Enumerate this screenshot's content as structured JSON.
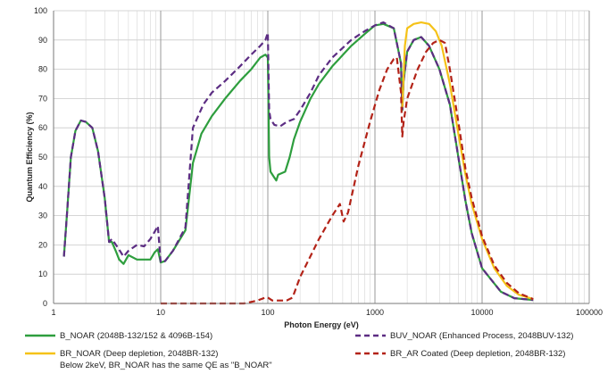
{
  "chart_data": {
    "type": "line",
    "xlabel": "Photon Energy (eV)",
    "ylabel": "Quantum Efficiency (%)",
    "xscale": "log",
    "xlim": [
      1,
      100000
    ],
    "ylim": [
      0,
      100
    ],
    "x_ticks": [
      "1",
      "10",
      "100",
      "1000",
      "10000",
      "100000"
    ],
    "y_ticks": [
      "0",
      "10",
      "20",
      "30",
      "40",
      "50",
      "60",
      "70",
      "80",
      "90",
      "100"
    ],
    "grid": true,
    "legend_position": "bottom",
    "legend_note": "Below 2keV, BR_NOAR has the same QE as \"B_NOAR\"",
    "series": [
      {
        "name": "B_NOAR       (2048B-132/152 & 4096B-154)",
        "color": "#2e9e3e",
        "dash": "solid",
        "points": [
          [
            1.25,
            16
          ],
          [
            1.33,
            30
          ],
          [
            1.45,
            50
          ],
          [
            1.6,
            59
          ],
          [
            1.8,
            62.5
          ],
          [
            2.0,
            62
          ],
          [
            2.3,
            60
          ],
          [
            2.6,
            52
          ],
          [
            3.0,
            36
          ],
          [
            3.3,
            21
          ],
          [
            3.5,
            21
          ],
          [
            3.8,
            18
          ],
          [
            4.1,
            15
          ],
          [
            4.5,
            13.5
          ],
          [
            5.0,
            16.5
          ],
          [
            6.0,
            15
          ],
          [
            7.0,
            15
          ],
          [
            8.0,
            15
          ],
          [
            8.8,
            17.5
          ],
          [
            9.4,
            18.5
          ],
          [
            10.0,
            14
          ],
          [
            11.0,
            14.5
          ],
          [
            13.0,
            18
          ],
          [
            17.0,
            25
          ],
          [
            20.0,
            48
          ],
          [
            24.0,
            58
          ],
          [
            30.0,
            64
          ],
          [
            40.0,
            70
          ],
          [
            55.0,
            76
          ],
          [
            70.0,
            80
          ],
          [
            85.0,
            84
          ],
          [
            95.0,
            85
          ],
          [
            100.0,
            84
          ],
          [
            103.0,
            50
          ],
          [
            106.0,
            45
          ],
          [
            115.0,
            43
          ],
          [
            120.0,
            42
          ],
          [
            125.0,
            44
          ],
          [
            135.0,
            44.5
          ],
          [
            145.0,
            45
          ],
          [
            160.0,
            50
          ],
          [
            175.0,
            56
          ],
          [
            200.0,
            62
          ],
          [
            250.0,
            70
          ],
          [
            300.0,
            75
          ],
          [
            400.0,
            81
          ],
          [
            600.0,
            88
          ],
          [
            800.0,
            92
          ],
          [
            1000.0,
            95
          ],
          [
            1200.0,
            95.5
          ],
          [
            1500.0,
            94
          ],
          [
            1750.0,
            82
          ],
          [
            1800.0,
            66
          ],
          [
            1850.0,
            76
          ],
          [
            2000.0,
            86
          ],
          [
            2300.0,
            90
          ],
          [
            2700.0,
            91
          ],
          [
            3200.0,
            88
          ],
          [
            4000.0,
            80
          ],
          [
            5000.0,
            68
          ],
          [
            6000.0,
            50
          ],
          [
            7000.0,
            35
          ],
          [
            8000.0,
            24
          ],
          [
            10000.0,
            12
          ],
          [
            15000.0,
            4
          ],
          [
            20000.0,
            1.8
          ],
          [
            30000.0,
            1.2
          ]
        ]
      },
      {
        "name": "BUV_NOAR       (Enhanced Process, 2048BUV-132)",
        "color": "#5c2d83",
        "dash": "dash",
        "points": [
          [
            1.25,
            16
          ],
          [
            1.33,
            30
          ],
          [
            1.45,
            50
          ],
          [
            1.6,
            59
          ],
          [
            1.8,
            62.5
          ],
          [
            2.0,
            62
          ],
          [
            2.3,
            60
          ],
          [
            2.6,
            52
          ],
          [
            3.0,
            36
          ],
          [
            3.3,
            21
          ],
          [
            3.5,
            22
          ],
          [
            4.0,
            19
          ],
          [
            4.5,
            16
          ],
          [
            5.0,
            18
          ],
          [
            6.0,
            20
          ],
          [
            7.0,
            19.5
          ],
          [
            8.0,
            22
          ],
          [
            8.8,
            24.5
          ],
          [
            9.4,
            26.5
          ],
          [
            10.0,
            14
          ],
          [
            11.0,
            14.5
          ],
          [
            13.0,
            18
          ],
          [
            17.0,
            26
          ],
          [
            20.0,
            60
          ],
          [
            25.0,
            68
          ],
          [
            30.0,
            72
          ],
          [
            40.0,
            76
          ],
          [
            55.0,
            81
          ],
          [
            70.0,
            85
          ],
          [
            85.0,
            88
          ],
          [
            95.0,
            90
          ],
          [
            100.0,
            92.5
          ],
          [
            103.0,
            66
          ],
          [
            106.0,
            63
          ],
          [
            115.0,
            61
          ],
          [
            130.0,
            60.5
          ],
          [
            150.0,
            62
          ],
          [
            175.0,
            63
          ],
          [
            200.0,
            66
          ],
          [
            250.0,
            72
          ],
          [
            300.0,
            78
          ],
          [
            400.0,
            84
          ],
          [
            600.0,
            90
          ],
          [
            800.0,
            93
          ],
          [
            1000.0,
            95
          ],
          [
            1200.0,
            96
          ],
          [
            1500.0,
            94
          ],
          [
            1750.0,
            82
          ],
          [
            1800.0,
            66
          ],
          [
            1850.0,
            76
          ],
          [
            2000.0,
            86
          ],
          [
            2300.0,
            90
          ],
          [
            2700.0,
            91
          ],
          [
            3200.0,
            88
          ],
          [
            4000.0,
            80
          ],
          [
            5000.0,
            68
          ],
          [
            6000.0,
            50
          ],
          [
            7000.0,
            35
          ],
          [
            8000.0,
            24
          ],
          [
            10000.0,
            12
          ],
          [
            15000.0,
            4
          ],
          [
            20000.0,
            1.8
          ],
          [
            30000.0,
            1.2
          ]
        ]
      },
      {
        "name": "BR_NOAR    (Deep depletion, 2048BR-132)",
        "color": "#f5c218",
        "dash": "solid",
        "points": [
          [
            1800.0,
            67
          ],
          [
            1900.0,
            88
          ],
          [
            2000.0,
            94
          ],
          [
            2300.0,
            95.5
          ],
          [
            2700.0,
            96
          ],
          [
            3200.0,
            95.5
          ],
          [
            3700.0,
            93
          ],
          [
            4200.0,
            88
          ],
          [
            5000.0,
            75
          ],
          [
            6000.0,
            58
          ],
          [
            7000.0,
            44
          ],
          [
            8000.0,
            34
          ],
          [
            10000.0,
            22
          ],
          [
            13000.0,
            12
          ],
          [
            17000.0,
            6
          ],
          [
            22000.0,
            3
          ],
          [
            30000.0,
            1.5
          ]
        ]
      },
      {
        "name": "BR_AR Coated      (Deep depletion, 2048BR-132)",
        "color": "#b32318",
        "dash": "dash",
        "points": [
          [
            10.0,
            0
          ],
          [
            60.0,
            0
          ],
          [
            80.0,
            1
          ],
          [
            95.0,
            2
          ],
          [
            100.0,
            2
          ],
          [
            110.0,
            1
          ],
          [
            150.0,
            1
          ],
          [
            170.0,
            2
          ],
          [
            200.0,
            9
          ],
          [
            300.0,
            22
          ],
          [
            400.0,
            30
          ],
          [
            470.0,
            34
          ],
          [
            510.0,
            28
          ],
          [
            560.0,
            31
          ],
          [
            700.0,
            47
          ],
          [
            900.0,
            62
          ],
          [
            1100.0,
            73
          ],
          [
            1300.0,
            80
          ],
          [
            1500.0,
            83.5
          ],
          [
            1600.0,
            84
          ],
          [
            1750.0,
            72
          ],
          [
            1800.0,
            57
          ],
          [
            1850.0,
            62
          ],
          [
            2000.0,
            70
          ],
          [
            2500.0,
            80
          ],
          [
            3000.0,
            86
          ],
          [
            3500.0,
            89
          ],
          [
            4000.0,
            90
          ],
          [
            4500.0,
            89
          ],
          [
            5000.0,
            80
          ],
          [
            6000.0,
            62
          ],
          [
            7000.0,
            46
          ],
          [
            8000.0,
            36
          ],
          [
            10000.0,
            23
          ],
          [
            13000.0,
            13
          ],
          [
            17000.0,
            7
          ],
          [
            22000.0,
            3.5
          ],
          [
            30000.0,
            1.5
          ]
        ]
      }
    ]
  }
}
